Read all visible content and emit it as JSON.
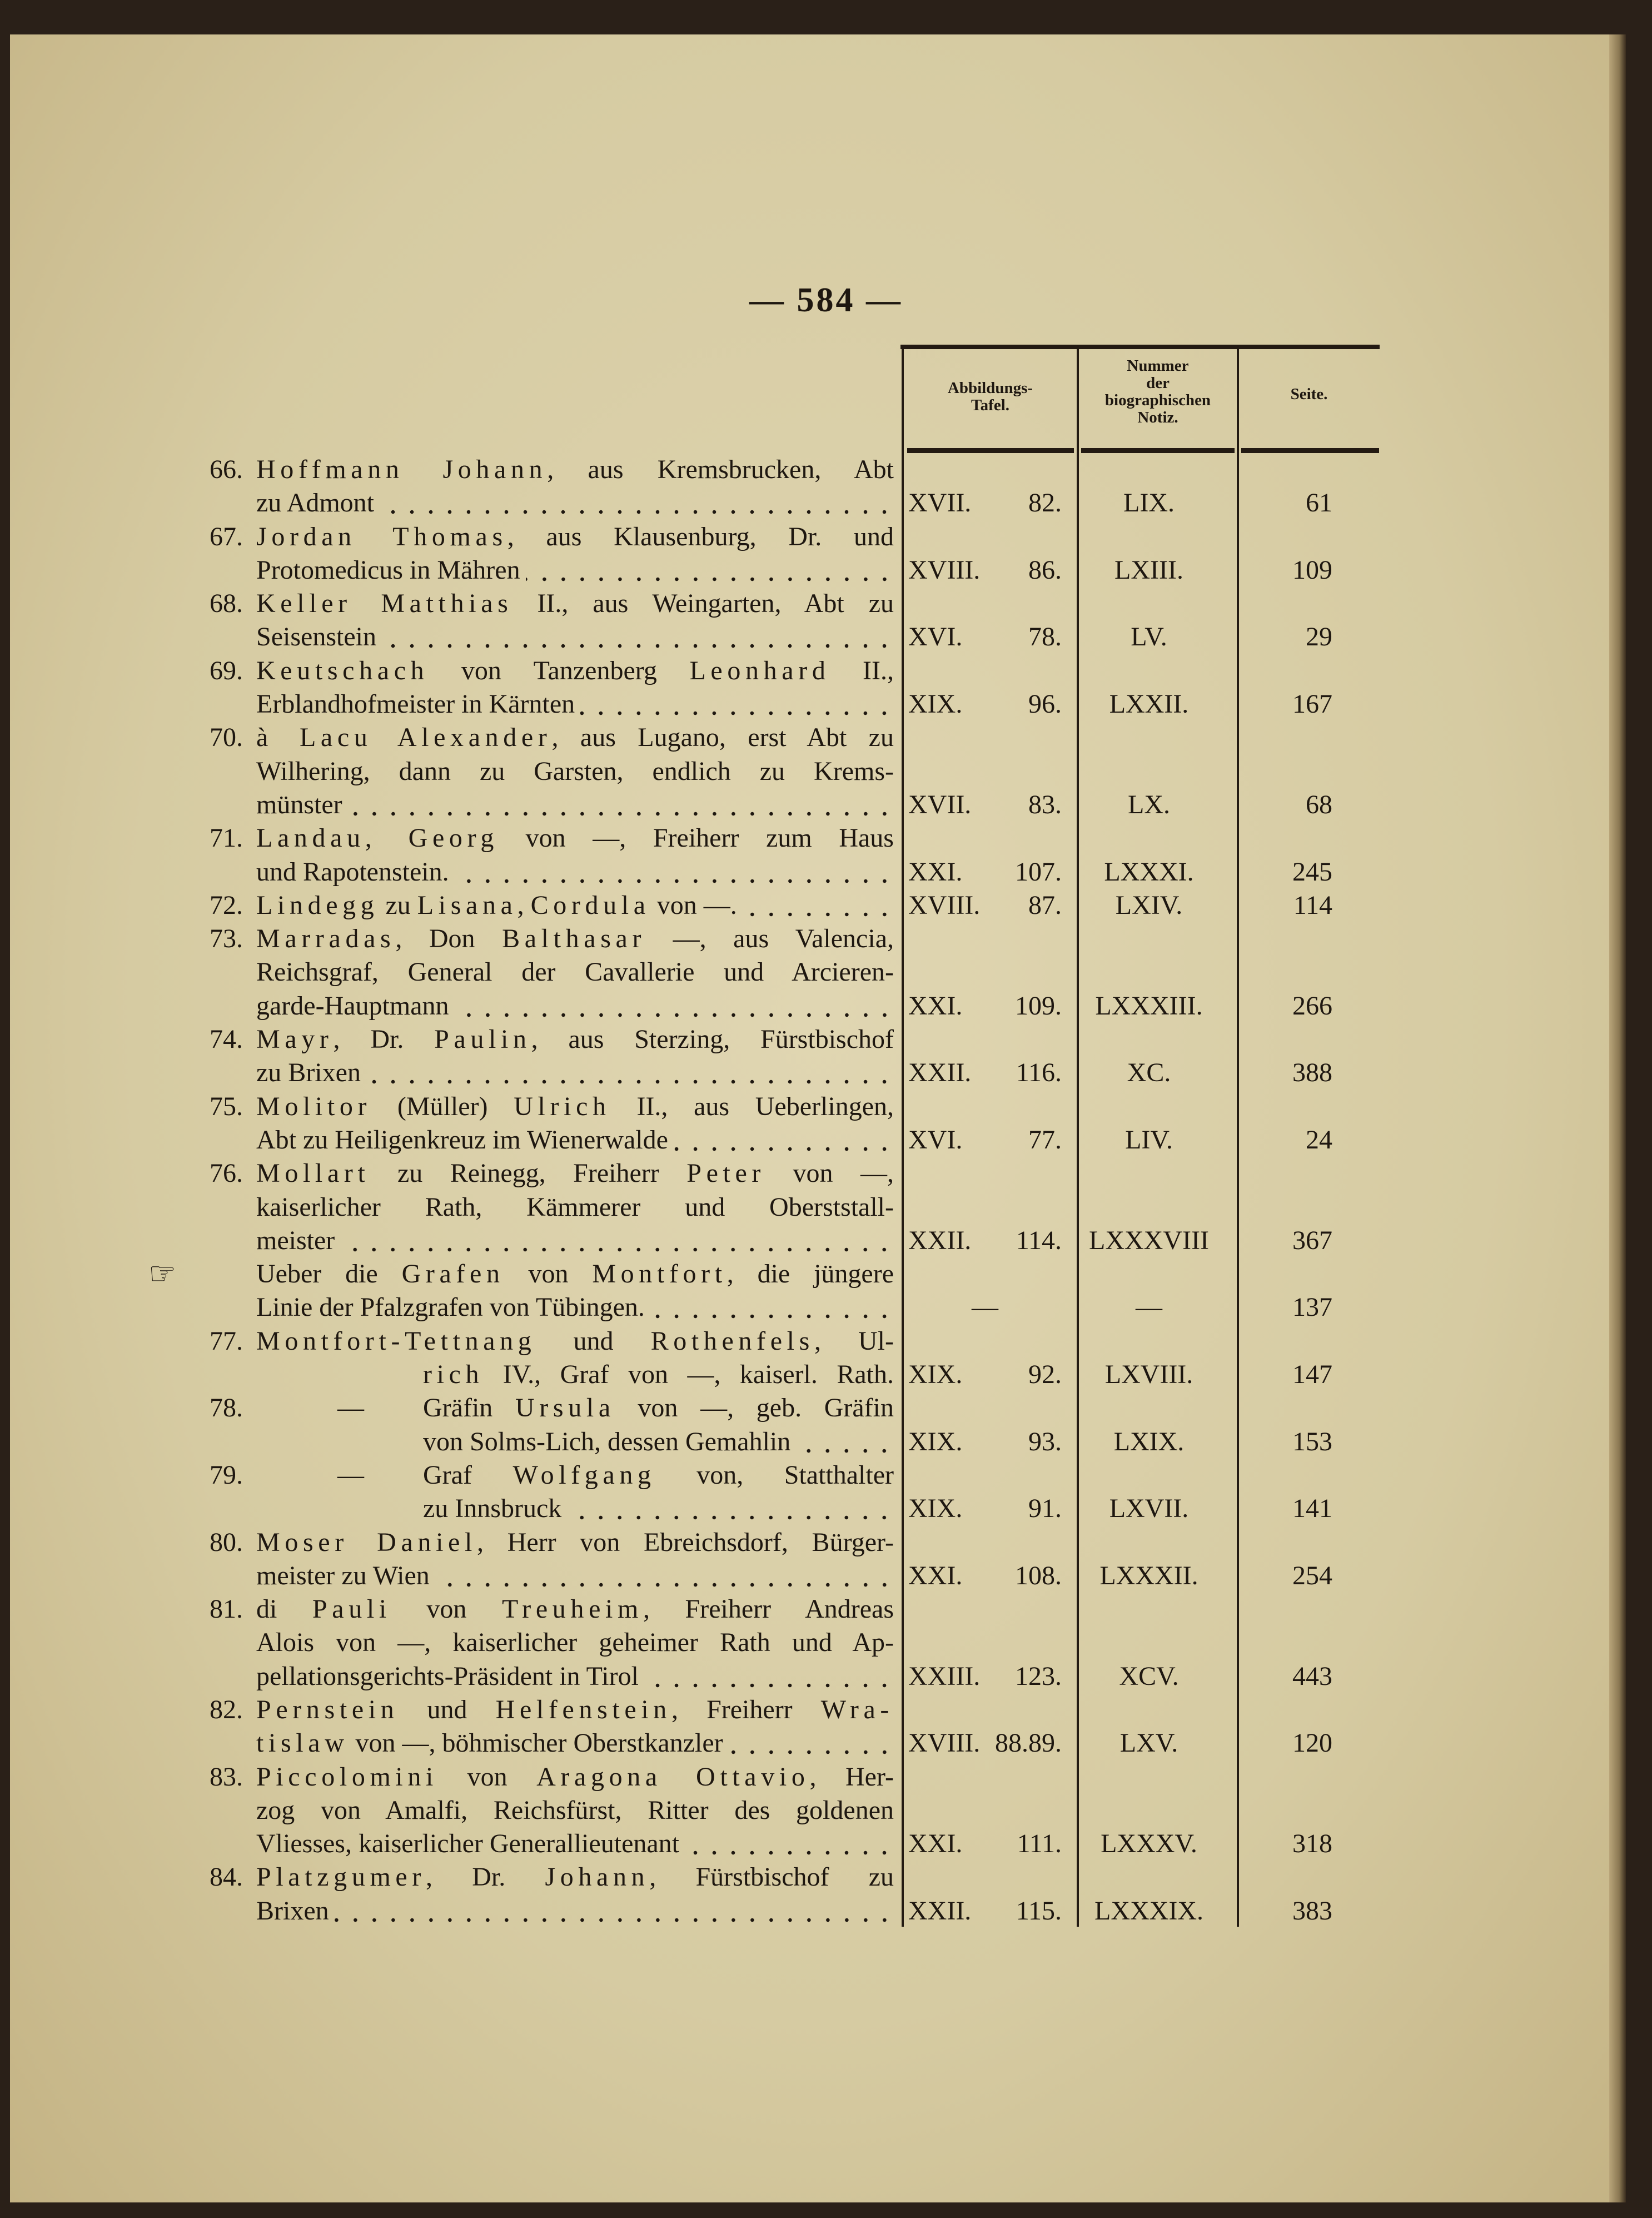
{
  "page_number": "— 584 —",
  "table_header": {
    "col1": [
      "Abbildungs-",
      "Tafel."
    ],
    "col2": [
      "Nummer",
      "der",
      "biographischen",
      "Notiz."
    ],
    "col3": [
      "Seite."
    ]
  },
  "entries": [
    {
      "num": "66.",
      "lines": [
        [
          {
            "s": "Hoffmann Johann"
          },
          ", aus Kremsbrucken, Abt"
        ],
        [
          "zu Admont"
        ]
      ],
      "tafel": "XVII.",
      "tafel_nr": "82.",
      "notiz": "LIX.",
      "seite": "61"
    },
    {
      "num": "67.",
      "lines": [
        [
          {
            "s": "Jordan Thomas"
          },
          ", aus Klausenburg, Dr. und"
        ],
        [
          "Protomedicus in Mähren"
        ]
      ],
      "tafel": "XVIII.",
      "tafel_nr": "86.",
      "notiz": "LXIII.",
      "seite": "109"
    },
    {
      "num": "68.",
      "lines": [
        [
          {
            "s": "Keller Matthias"
          },
          " II., aus Weingarten, Abt zu"
        ],
        [
          "Seisenstein"
        ]
      ],
      "tafel": "XVI.",
      "tafel_nr": "78.",
      "notiz": "LV.",
      "seite": "29"
    },
    {
      "num": "69.",
      "lines": [
        [
          {
            "s": "Keutschach"
          },
          " von Tanzenberg ",
          {
            "s": "Leonhard"
          },
          " II.,"
        ],
        [
          "Erblandhofmeister in Kärnten"
        ]
      ],
      "tafel": "XIX.",
      "tafel_nr": "96.",
      "notiz": "LXXII.",
      "seite": "167"
    },
    {
      "num": "70.",
      "lines": [
        [
          {
            "s": "à Lacu Alexander"
          },
          ", aus Lugano, erst Abt zu"
        ],
        [
          "Wilhering, dann zu Garsten, endlich zu Krems-"
        ],
        [
          "münster"
        ]
      ],
      "tafel": "XVII.",
      "tafel_nr": "83.",
      "notiz": "LX.",
      "seite": "68"
    },
    {
      "num": "71.",
      "lines": [
        [
          {
            "s": "Landau, Georg"
          },
          " von —, Freiherr zum Haus"
        ],
        [
          "und Rapotenstein."
        ]
      ],
      "tafel": "XXI.",
      "tafel_nr": "107.",
      "notiz": "LXXXI.",
      "seite": "245"
    },
    {
      "num": "72.",
      "lines": [
        [
          {
            "s": "Lindegg"
          },
          " zu ",
          {
            "s": "Lisana"
          },
          ", ",
          {
            "s": "Cordula"
          },
          " von —."
        ]
      ],
      "tafel": "XVIII.",
      "tafel_nr": "87.",
      "notiz": "LXIV.",
      "seite": "114"
    },
    {
      "num": "73.",
      "lines": [
        [
          {
            "s": "Marradas"
          },
          ", Don ",
          {
            "s": "Balthasar"
          },
          " —, aus Valencia,"
        ],
        [
          "Reichsgraf, General der Cavallerie und Arcieren-"
        ],
        [
          "garde-Hauptmann"
        ]
      ],
      "tafel": "XXI.",
      "tafel_nr": "109.",
      "notiz": "LXXXIII.",
      "seite": "266"
    },
    {
      "num": "74.",
      "lines": [
        [
          {
            "s": "Mayr"
          },
          ", Dr. ",
          {
            "s": "Paulin"
          },
          ", aus Sterzing, Fürstbischof"
        ],
        [
          "zu Brixen"
        ]
      ],
      "tafel": "XXII.",
      "tafel_nr": "116.",
      "notiz": "XC.",
      "seite": "388"
    },
    {
      "num": "75.",
      "lines": [
        [
          {
            "s": "Molitor"
          },
          " (Müller) ",
          {
            "s": "Ulrich"
          },
          " II., aus Ueberlingen,"
        ],
        [
          "Abt zu Heiligenkreuz im Wienerwalde"
        ]
      ],
      "tafel": "XVI.",
      "tafel_nr": "77.",
      "notiz": "LIV.",
      "seite": "24"
    },
    {
      "num": "76.",
      "lines": [
        [
          {
            "s": "Mollart"
          },
          " zu Reinegg, Freiherr ",
          {
            "s": "Peter"
          },
          " von —,"
        ],
        [
          "kaiserlicher Rath, Kämmerer und Oberststall-"
        ],
        [
          "meister"
        ]
      ],
      "tafel": "XXII.",
      "tafel_nr": "114.",
      "notiz": "LXXXVIII",
      "seite": "367"
    },
    {
      "num": "",
      "hand": "☞",
      "lines": [
        [
          "Ueber die ",
          {
            "s": "Grafen"
          },
          " von ",
          {
            "s": "Montfort"
          },
          ", die jüngere"
        ],
        [
          "Linie der Pfalzgrafen von Tübingen."
        ]
      ],
      "tafel": "—",
      "tafel_nr": "",
      "notiz": "—",
      "seite": "137"
    },
    {
      "num": "77.",
      "indent_after_first": true,
      "lines": [
        [
          {
            "s": "Montfort-Tettnang"
          },
          " und ",
          {
            "s": "Rothenfels"
          },
          ", Ul-"
        ],
        [
          {
            "s": "rich"
          },
          " IV., Graf von —, kaiserl. Rath."
        ]
      ],
      "tafel": "XIX.",
      "tafel_nr": "92.",
      "notiz": "LXVIII.",
      "seite": "147",
      "no_leader": true
    },
    {
      "num": "78.",
      "dash": "—",
      "lines": [
        [
          "Gräfin ",
          {
            "s": "Ursula"
          },
          " von —, geb. Gräfin"
        ],
        [
          "von Solms-Lich, dessen Gemahlin"
        ]
      ],
      "tafel": "XIX.",
      "tafel_nr": "93.",
      "notiz": "LXIX.",
      "seite": "153"
    },
    {
      "num": "79.",
      "dash": "—",
      "lines": [
        [
          "Graf ",
          {
            "s": "Wolfgang"
          },
          " von, Statthalter"
        ],
        [
          "zu Innsbruck"
        ]
      ],
      "tafel": "XIX.",
      "tafel_nr": "91.",
      "notiz": "LXVII.",
      "seite": "141"
    },
    {
      "num": "80.",
      "lines": [
        [
          {
            "s": "Moser Daniel"
          },
          ", Herr von Ebreichsdorf, Bürger-"
        ],
        [
          "meister zu Wien"
        ]
      ],
      "tafel": "XXI.",
      "tafel_nr": "108.",
      "notiz": "LXXXII.",
      "seite": "254"
    },
    {
      "num": "81.",
      "lines": [
        [
          "di ",
          {
            "s": "Pauli"
          },
          " von ",
          {
            "s": "Treuheim"
          },
          ", Freiherr Andreas"
        ],
        [
          "Alois von —, kaiserlicher geheimer Rath und Ap-"
        ],
        [
          "pellationsgerichts-Präsident in Tirol"
        ]
      ],
      "tafel": "XXIII.",
      "tafel_nr": "123.",
      "notiz": "XCV.",
      "seite": "443"
    },
    {
      "num": "82.",
      "lines": [
        [
          {
            "s": "Pernstein"
          },
          " und ",
          {
            "s": "Helfenstein"
          },
          ", Freiherr ",
          {
            "s": "Wra-"
          }
        ],
        [
          {
            "s": "tislaw"
          },
          " von —, böhmischer Oberstkanzler"
        ]
      ],
      "tafel": "XVIII.",
      "tafel_nr": "88.89.",
      "notiz": "LXV.",
      "seite": "120"
    },
    {
      "num": "83.",
      "lines": [
        [
          {
            "s": "Piccolomini"
          },
          " von ",
          {
            "s": "Aragona Ottavio"
          },
          ", Her-"
        ],
        [
          "zog von Amalfi, Reichsfürst, Ritter des goldenen"
        ],
        [
          "Vliesses, kaiserlicher Generallieutenant"
        ]
      ],
      "tafel": "XXI.",
      "tafel_nr": "111.",
      "notiz": "LXXXV.",
      "seite": "318"
    },
    {
      "num": "84.",
      "lines": [
        [
          {
            "s": "Platzgumer"
          },
          ", Dr. ",
          {
            "s": "Johann"
          },
          ", Fürstbischof zu"
        ],
        [
          "Brixen"
        ]
      ],
      "tafel": "XXII.",
      "tafel_nr": "115.",
      "notiz": "LXXXIX.",
      "seite": "383"
    }
  ]
}
